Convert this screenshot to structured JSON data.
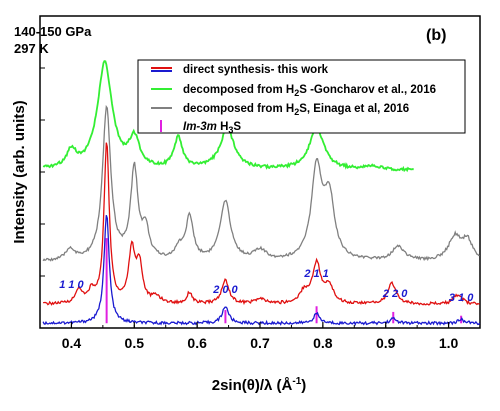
{
  "chart_data": {
    "type": "line",
    "panel_label": "(b)",
    "conditions": [
      "140-150 GPa",
      "297 K"
    ],
    "xlabel": "2sin(θ)/λ (Å",
    "xlabel_sup": "-1",
    "xlabel_close": ")",
    "ylabel": "Intensity (arb. units)",
    "xlim": [
      0.35,
      1.05
    ],
    "xticks": [
      "0.4",
      "0.5",
      "0.6",
      "0.7",
      "0.8",
      "0.9",
      "1.0"
    ],
    "grid": false,
    "legend_position": "top-right",
    "legend": [
      {
        "label": "direct synthesis- this work",
        "colors": [
          "#e01010",
          "#1a1ad0"
        ]
      },
      {
        "label_prefix": "decomposed from H",
        "label_sub": "2",
        "label_suffix": "S -Goncharov et al., 2016",
        "colors": [
          "#33ee33"
        ]
      },
      {
        "label_prefix": "decomposed from H",
        "label_sub": "2",
        "label_suffix": "S, Einaga et al, 2016",
        "colors": [
          "#808080"
        ]
      },
      {
        "label_italic": "Im-3m",
        "label_prefix": " H",
        "label_sub": "3",
        "label_suffix": "S",
        "colors": [
          "#e020e0"
        ],
        "marker": "tick"
      }
    ],
    "miller_indices": [
      {
        "x": 0.4,
        "label": "1 1 0"
      },
      {
        "x": 0.645,
        "label": "2 0 0"
      },
      {
        "x": 0.79,
        "label": "2 1 1"
      },
      {
        "x": 0.915,
        "label": "2 2 0"
      },
      {
        "x": 1.02,
        "label": "3 1 0"
      }
    ],
    "series": [
      {
        "name": "Im-3m H3S",
        "color": "#e020e0",
        "kind": "sticks",
        "x": [
          0.456,
          0.645,
          0.79,
          0.912,
          1.02
        ],
        "values": [
          0.9,
          0.14,
          0.18,
          0.12,
          0.08
        ]
      },
      {
        "name": "direct synthesis- this work (blue)",
        "color": "#1a1ad0",
        "baseline": 0.0,
        "peaks": [
          [
            0.456,
            1.15,
            0.005
          ],
          [
            0.645,
            0.18,
            0.006
          ],
          [
            0.79,
            0.1,
            0.006
          ],
          [
            0.912,
            0.05,
            0.006
          ],
          [
            1.02,
            0.04,
            0.006
          ]
        ],
        "x": [
          0.35,
          0.4,
          0.456,
          0.5,
          0.6,
          0.645,
          0.7,
          0.79,
          0.85,
          0.912,
          1.02,
          1.05
        ],
        "values": [
          0.0,
          0.0,
          1.15,
          0.0,
          0.0,
          0.18,
          0.0,
          0.1,
          0.0,
          0.05,
          0.04,
          0.0
        ]
      },
      {
        "name": "direct synthesis- this work (red)",
        "color": "#e01010",
        "baseline": 0.2,
        "peaks": [
          [
            0.412,
            0.15,
            0.006
          ],
          [
            0.432,
            0.12,
            0.006
          ],
          [
            0.456,
            1.7,
            0.005
          ],
          [
            0.496,
            0.55,
            0.006
          ],
          [
            0.508,
            0.4,
            0.006
          ],
          [
            0.535,
            0.07,
            0.008
          ],
          [
            0.588,
            0.12,
            0.005
          ],
          [
            0.645,
            0.25,
            0.007
          ],
          [
            0.7,
            0.05,
            0.01
          ],
          [
            0.77,
            0.12,
            0.008
          ],
          [
            0.79,
            0.42,
            0.008
          ],
          [
            0.81,
            0.18,
            0.008
          ],
          [
            0.91,
            0.22,
            0.008
          ],
          [
            1.015,
            0.1,
            0.008
          ]
        ],
        "x": [
          0.35,
          0.412,
          0.432,
          0.456,
          0.496,
          0.508,
          0.535,
          0.588,
          0.645,
          0.7,
          0.77,
          0.79,
          0.81,
          0.91,
          1.015,
          1.05
        ],
        "values": [
          0.2,
          0.35,
          0.32,
          1.9,
          0.75,
          0.6,
          0.27,
          0.32,
          0.45,
          0.25,
          0.32,
          0.62,
          0.38,
          0.42,
          0.3,
          0.2
        ]
      },
      {
        "name": "decomposed from H2S, Einaga et al, 2016",
        "color": "#808080",
        "baseline": 0.65,
        "peaks": [
          [
            0.398,
            0.12,
            0.008
          ],
          [
            0.456,
            1.6,
            0.008
          ],
          [
            0.5,
            0.95,
            0.007
          ],
          [
            0.518,
            0.3,
            0.007
          ],
          [
            0.572,
            0.12,
            0.008
          ],
          [
            0.588,
            0.45,
            0.007
          ],
          [
            0.645,
            0.62,
            0.01
          ],
          [
            0.7,
            0.1,
            0.012
          ],
          [
            0.79,
            0.95,
            0.01
          ],
          [
            0.81,
            0.65,
            0.01
          ],
          [
            0.92,
            0.15,
            0.012
          ],
          [
            1.01,
            0.25,
            0.012
          ],
          [
            1.03,
            0.2,
            0.01
          ]
        ],
        "x": [
          0.35,
          0.398,
          0.456,
          0.5,
          0.588,
          0.645,
          0.7,
          0.79,
          0.81,
          0.92,
          1.01,
          1.05
        ],
        "values": [
          0.65,
          0.77,
          2.25,
          1.6,
          1.1,
          1.27,
          0.75,
          1.6,
          1.3,
          0.8,
          0.9,
          0.65
        ]
      },
      {
        "name": "decomposed from H2S -Goncharov et al., 2016",
        "color": "#33ee33",
        "baseline": 1.62,
        "peaks": [
          [
            0.4,
            0.18,
            0.009
          ],
          [
            0.453,
            1.12,
            0.014
          ],
          [
            0.5,
            0.3,
            0.01
          ],
          [
            0.57,
            0.32,
            0.008
          ],
          [
            0.648,
            0.42,
            0.014
          ],
          [
            0.79,
            0.44,
            0.014
          ],
          [
            0.88,
            0.04,
            0.012
          ]
        ],
        "x": [
          0.35,
          0.4,
          0.453,
          0.5,
          0.57,
          0.648,
          0.79,
          0.88,
          0.945
        ],
        "values": [
          1.62,
          1.8,
          2.74,
          1.92,
          1.94,
          2.04,
          2.06,
          1.66,
          1.58
        ],
        "x_end": 0.945
      }
    ],
    "ylim": [
      -0.05,
      3.25
    ]
  }
}
